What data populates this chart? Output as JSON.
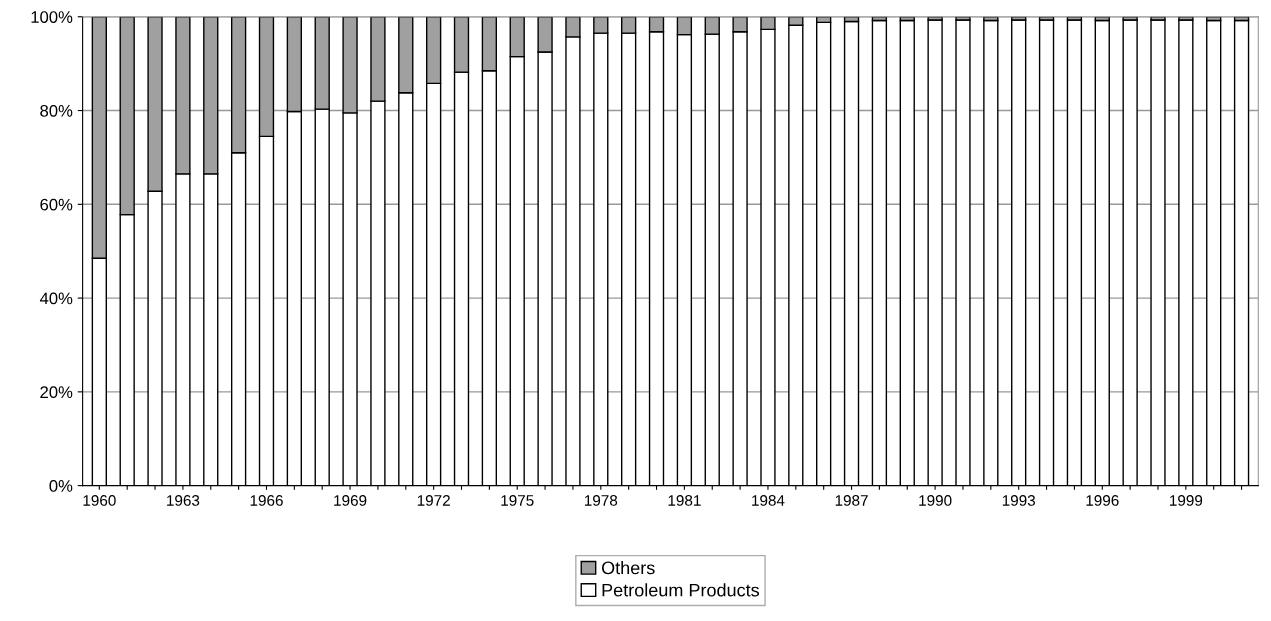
{
  "chart_data": {
    "type": "bar",
    "stacked": true,
    "categories": [
      "1960",
      null,
      null,
      "1963",
      null,
      null,
      "1966",
      null,
      null,
      "1969",
      null,
      null,
      "1972",
      null,
      null,
      "1975",
      null,
      null,
      "1978",
      null,
      null,
      "1981",
      null,
      null,
      "1984",
      null,
      null,
      "1987",
      null,
      null,
      "1990",
      null,
      null,
      "1993",
      null,
      null,
      "1996",
      null,
      null,
      "1999",
      null,
      null
    ],
    "series": [
      {
        "name": "Petroleum Products",
        "color": "#ffffff",
        "values": [
          48.5,
          57.8,
          62.8,
          66.5,
          66.5,
          71,
          74.5,
          79.8,
          80.3,
          79.5,
          82,
          83.8,
          85.8,
          88.2,
          88.5,
          91.5,
          92.5,
          95.7,
          96.5,
          96.5,
          96.8,
          96.2,
          96.3,
          96.8,
          97.3,
          98.2,
          98.8,
          99,
          99.2,
          99.2,
          99.3,
          99.3,
          99.2,
          99.3,
          99.3,
          99.3,
          99.2,
          99.3,
          99.3,
          99.3,
          99.2,
          99.2
        ]
      },
      {
        "name": "Others",
        "color": "#a0a0a0",
        "values": [
          51.5,
          42.2,
          37.2,
          33.5,
          33.5,
          29,
          25.5,
          20.2,
          19.7,
          20.5,
          18,
          16.2,
          14.2,
          11.8,
          11.5,
          8.5,
          7.5,
          4.3,
          3.5,
          3.5,
          3.2,
          3.8,
          3.7,
          3.2,
          2.7,
          1.8,
          1.2,
          1,
          0.8,
          0.8,
          0.7,
          0.7,
          0.8,
          0.7,
          0.7,
          0.7,
          0.8,
          0.7,
          0.7,
          0.7,
          0.8,
          0.8
        ]
      }
    ],
    "ylim": [
      0,
      100
    ],
    "yticks": [
      {
        "value": 0,
        "label": "0%"
      },
      {
        "value": 20,
        "label": "20%"
      },
      {
        "value": 40,
        "label": "40%"
      },
      {
        "value": 60,
        "label": "60%"
      },
      {
        "value": 80,
        "label": "80%"
      },
      {
        "value": 100,
        "label": "100%"
      }
    ],
    "grid": "y",
    "legend": "bottom"
  }
}
